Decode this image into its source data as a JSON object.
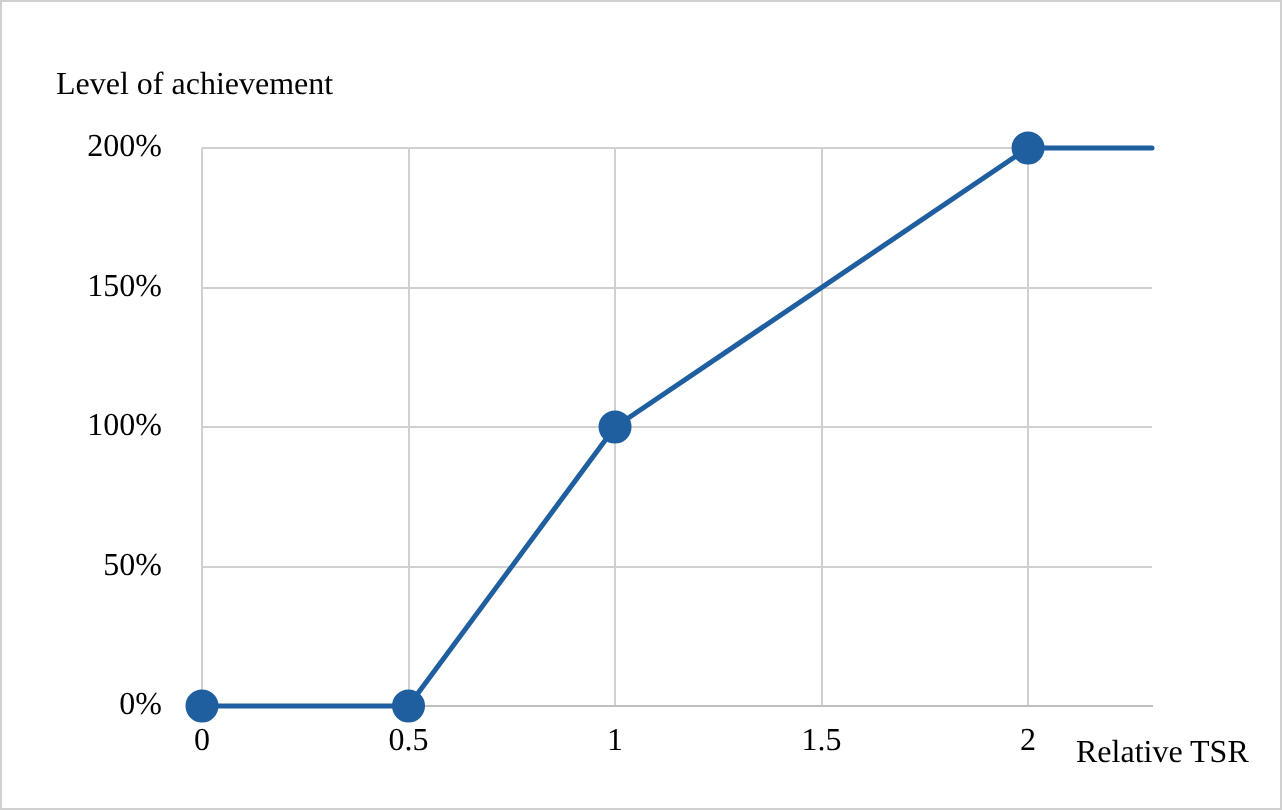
{
  "chart_data": {
    "type": "line",
    "ylabel": "Level of achievement",
    "xlabel": "Relative TSR",
    "xlim": [
      0,
      2.3
    ],
    "xticks": [
      0,
      0.5,
      1,
      1.5,
      2
    ],
    "ylim": [
      0,
      200
    ],
    "yticks": [
      {
        "value": 0,
        "label": "0%"
      },
      {
        "value": 50,
        "label": "50%"
      },
      {
        "value": 100,
        "label": "100%"
      },
      {
        "value": 150,
        "label": "150%"
      },
      {
        "value": 200,
        "label": "200%"
      }
    ],
    "grid": true,
    "marker": "circle",
    "line_style": "solid",
    "series": [
      {
        "color": "#1f5fa0",
        "x": [
          0,
          0.5,
          1,
          2
        ],
        "values": [
          0,
          0,
          100,
          200
        ]
      },
      {
        "color": "#1f5fa0",
        "x": [
          2,
          2.3
        ],
        "values": [
          200,
          200
        ],
        "marker": "none"
      }
    ]
  }
}
